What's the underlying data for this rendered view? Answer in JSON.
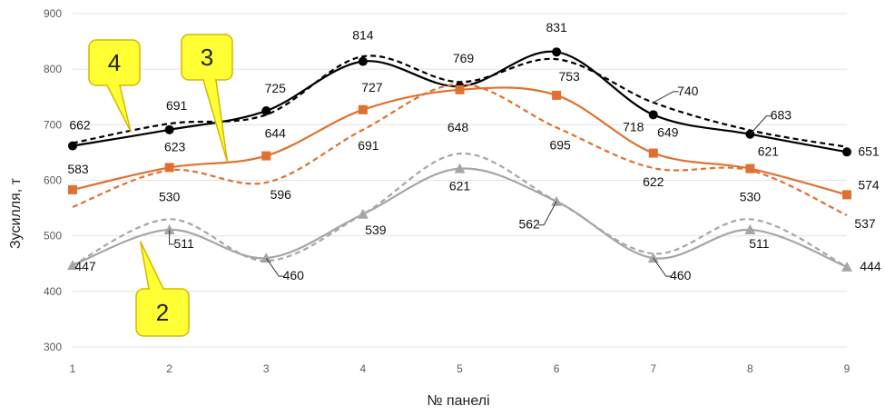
{
  "chart_data": {
    "type": "line",
    "title": "",
    "xlabel": "№ панелі",
    "ylabel": "Зусилля, т",
    "x": [
      1,
      2,
      3,
      4,
      5,
      6,
      7,
      8,
      9
    ],
    "ylim": [
      300,
      900
    ],
    "yticks": [
      300,
      400,
      500,
      600,
      700,
      800,
      900
    ],
    "grid": "horizontal",
    "legend": "none",
    "series": [
      {
        "group": "4",
        "style": "solid",
        "marker": "circle",
        "color": "#000000",
        "values": [
          662,
          691,
          725,
          814,
          769,
          831,
          718,
          683,
          651
        ]
      },
      {
        "group": "4",
        "style": "dashed",
        "marker": "none",
        "color": "#000000",
        "values": [
          667,
          702,
          718,
          823,
          777,
          818,
          740,
          690,
          660
        ]
      },
      {
        "group": "3",
        "style": "solid",
        "marker": "square",
        "color": "#E0702F",
        "values": [
          583,
          623,
          644,
          727,
          763,
          753,
          649,
          621,
          574
        ]
      },
      {
        "group": "3",
        "style": "dashed",
        "marker": "none",
        "color": "#E0702F",
        "values": [
          552,
          618,
          596,
          691,
          773,
          695,
          622,
          618,
          537
        ]
      },
      {
        "group": "2",
        "style": "solid",
        "marker": "triangle",
        "color": "#A6A6A6",
        "values": [
          447,
          511,
          460,
          539,
          621,
          562,
          460,
          511,
          444
        ]
      },
      {
        "group": "2",
        "style": "dashed",
        "marker": "none",
        "color": "#A6A6A6",
        "values": [
          447,
          530,
          455,
          539,
          648,
          562,
          468,
          530,
          444
        ]
      }
    ],
    "labels": [
      {
        "text": "662",
        "x": 1,
        "y": 662,
        "dx": 8,
        "dy": -18
      },
      {
        "text": "691",
        "x": 2,
        "y": 691,
        "dx": 8,
        "dy": -22
      },
      {
        "text": "725",
        "x": 3,
        "y": 725,
        "dx": 10,
        "dy": -20
      },
      {
        "text": "814",
        "x": 4,
        "y": 814,
        "dx": 0,
        "dy": -24
      },
      {
        "text": "769",
        "x": 5,
        "y": 769,
        "dx": 4,
        "dy": -26
      },
      {
        "text": "831",
        "x": 6,
        "y": 831,
        "dx": 0,
        "dy": -22
      },
      {
        "text": "718",
        "x": 7,
        "y": 718,
        "dx": -22,
        "dy": 18
      },
      {
        "text": "740",
        "x": 7,
        "y": 740,
        "dx": 38,
        "dy": -8,
        "leader": true
      },
      {
        "text": "683",
        "x": 8,
        "y": 683,
        "dx": 34,
        "dy": -16,
        "leader": true
      },
      {
        "text": "651",
        "x": 9,
        "y": 651,
        "dx": 24,
        "dy": 4
      },
      {
        "text": "583",
        "x": 1,
        "y": 583,
        "dx": 6,
        "dy": -18
      },
      {
        "text": "623",
        "x": 2,
        "y": 623,
        "dx": 6,
        "dy": -18
      },
      {
        "text": "644",
        "x": 3,
        "y": 644,
        "dx": 10,
        "dy": -20
      },
      {
        "text": "727",
        "x": 4,
        "y": 727,
        "dx": 10,
        "dy": -20
      },
      {
        "text": "753",
        "x": 6,
        "y": 753,
        "dx": 14,
        "dy": -16
      },
      {
        "text": "649",
        "x": 7,
        "y": 649,
        "dx": 16,
        "dy": -18
      },
      {
        "text": "621",
        "x": 8,
        "y": 621,
        "dx": 20,
        "dy": -14
      },
      {
        "text": "574",
        "x": 9,
        "y": 574,
        "dx": 24,
        "dy": -6
      },
      {
        "text": "596",
        "x": 3,
        "y": 596,
        "dx": 16,
        "dy": 18
      },
      {
        "text": "691",
        "x": 4,
        "y": 691,
        "dx": 6,
        "dy": 22
      },
      {
        "text": "695",
        "x": 6,
        "y": 695,
        "dx": 4,
        "dy": 24
      },
      {
        "text": "622",
        "x": 7,
        "y": 622,
        "dx": 0,
        "dy": 20
      },
      {
        "text": "537",
        "x": 9,
        "y": 537,
        "dx": 20,
        "dy": 14
      },
      {
        "text": "648",
        "x": 5,
        "y": 648,
        "dx": -2,
        "dy": -24
      },
      {
        "text": "621",
        "x": 5,
        "y": 621,
        "dx": 0,
        "dy": 24
      },
      {
        "text": "530",
        "x": 2,
        "y": 530,
        "dx": 0,
        "dy": -20
      },
      {
        "text": "511",
        "x": 2,
        "y": 511,
        "dx": 16,
        "dy": 20,
        "leader": true
      },
      {
        "text": "447",
        "x": 1,
        "y": 447,
        "dx": 14,
        "dy": 6
      },
      {
        "text": "460",
        "x": 3,
        "y": 460,
        "dx": 30,
        "dy": 24,
        "leader": true
      },
      {
        "text": "539",
        "x": 4,
        "y": 539,
        "dx": 14,
        "dy": 22
      },
      {
        "text": "562",
        "x": 6,
        "y": 562,
        "dx": -30,
        "dy": 30,
        "leader": true
      },
      {
        "text": "460",
        "x": 7,
        "y": 460,
        "dx": 30,
        "dy": 24,
        "leader": true
      },
      {
        "text": "530",
        "x": 8,
        "y": 530,
        "dx": 0,
        "dy": -20
      },
      {
        "text": "511",
        "x": 8,
        "y": 511,
        "dx": 10,
        "dy": 20
      },
      {
        "text": "444",
        "x": 9,
        "y": 444,
        "dx": 26,
        "dy": 4
      }
    ],
    "callouts": [
      {
        "text": "4",
        "pointer_to": {
          "x": 1.6,
          "y": 688
        }
      },
      {
        "text": "3",
        "pointer_to": {
          "x": 2.6,
          "y": 632
        }
      },
      {
        "text": "2",
        "pointer_to": {
          "x": 1.7,
          "y": 490
        }
      }
    ],
    "callout_fill": "#FFFF33",
    "callout_stroke": "#D7B600",
    "grid_color": "#E3E3E3"
  }
}
